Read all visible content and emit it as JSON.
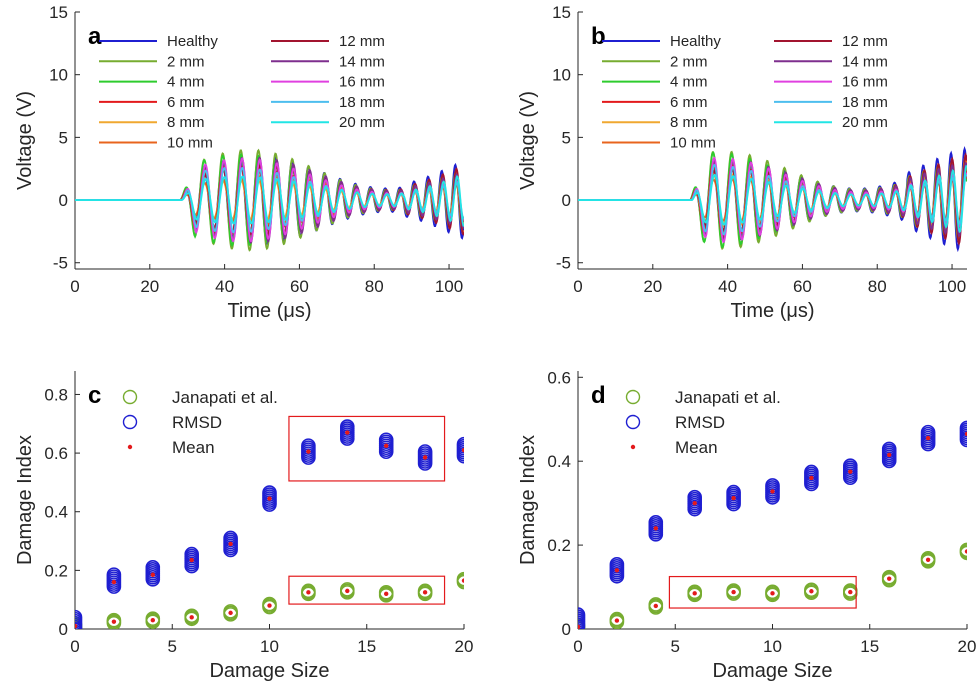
{
  "chart_data": [
    {
      "panel": "a",
      "type": "line",
      "xlabel": "Time (μs)",
      "ylabel": "Voltage (V)",
      "xlim": [
        0,
        104
      ],
      "ylim": [
        -5.5,
        15
      ],
      "xticks": [
        0,
        20,
        40,
        60,
        80,
        100
      ],
      "yticks": [
        -5,
        0,
        5,
        10,
        15
      ],
      "grid": false,
      "legend": "top-left",
      "onset": 28,
      "series": [
        {
          "name": "Healthy",
          "color": "#1f1fd1"
        },
        {
          "name": "2 mm",
          "color": "#77ac30"
        },
        {
          "name": "4 mm",
          "color": "#2ecc2e"
        },
        {
          "name": "6 mm",
          "color": "#e31a1c"
        },
        {
          "name": "8 mm",
          "color": "#f0a830"
        },
        {
          "name": "10 mm",
          "color": "#e8641e"
        },
        {
          "name": "12 mm",
          "color": "#a2142f"
        },
        {
          "name": "14 mm",
          "color": "#7e2f8e"
        },
        {
          "name": "16 mm",
          "color": "#e040e0"
        },
        {
          "name": "18 mm",
          "color": "#4dbeee"
        },
        {
          "name": "20 mm",
          "color": "#22e5e5"
        }
      ]
    },
    {
      "panel": "b",
      "type": "line",
      "xlabel": "Time (μs)",
      "ylabel": "Voltage (V)",
      "xlim": [
        0,
        104
      ],
      "ylim": [
        -5.5,
        15
      ],
      "xticks": [
        0,
        20,
        40,
        60,
        80,
        100
      ],
      "yticks": [
        -5,
        0,
        5,
        10,
        15
      ],
      "grid": false,
      "legend": "top-left",
      "onset": 30,
      "series": [
        {
          "name": "Healthy",
          "color": "#1f1fd1"
        },
        {
          "name": "2 mm",
          "color": "#77ac30"
        },
        {
          "name": "4 mm",
          "color": "#2ecc2e"
        },
        {
          "name": "6 mm",
          "color": "#e31a1c"
        },
        {
          "name": "8 mm",
          "color": "#f0a830"
        },
        {
          "name": "10 mm",
          "color": "#e8641e"
        },
        {
          "name": "12 mm",
          "color": "#a2142f"
        },
        {
          "name": "14 mm",
          "color": "#7e2f8e"
        },
        {
          "name": "16 mm",
          "color": "#e040e0"
        },
        {
          "name": "18 mm",
          "color": "#4dbeee"
        },
        {
          "name": "20 mm",
          "color": "#22e5e5"
        }
      ]
    },
    {
      "panel": "c",
      "type": "scatter",
      "xlabel": "Damage Size",
      "ylabel": "Damage Index",
      "xlim": [
        0,
        20
      ],
      "ylim": [
        0,
        0.88
      ],
      "xticks": [
        0,
        5,
        10,
        15,
        20
      ],
      "yticks": [
        0,
        0.2,
        0.4,
        0.6,
        0.8
      ],
      "ytick_labels": [
        "0",
        "0.2",
        "0.4",
        "0.6",
        "0.8"
      ],
      "grid": false,
      "legend": "top-left",
      "x": [
        0,
        2,
        4,
        6,
        8,
        10,
        12,
        14,
        16,
        18,
        20
      ],
      "series": [
        {
          "name": "Janapati et al.",
          "color": "#77ac30",
          "values": [
            0.01,
            0.025,
            0.03,
            0.04,
            0.055,
            0.08,
            0.125,
            0.13,
            0.12,
            0.125,
            0.165
          ]
        },
        {
          "name": "RMSD",
          "color": "#1f1fd1",
          "values": [
            0.02,
            0.165,
            0.19,
            0.235,
            0.29,
            0.445,
            0.605,
            0.67,
            0.625,
            0.585,
            0.61
          ]
        },
        {
          "name": "Mean",
          "color": "#e31a1c",
          "values": [
            0.01,
            0.16,
            0.185,
            0.235,
            0.29,
            0.445,
            0.605,
            0.67,
            0.625,
            0.585,
            0.61
          ]
        }
      ],
      "highlight_boxes": [
        {
          "x": [
            11,
            19
          ],
          "y": [
            0.505,
            0.725
          ]
        },
        {
          "x": [
            11,
            19
          ],
          "y": [
            0.085,
            0.18
          ]
        }
      ]
    },
    {
      "panel": "d",
      "type": "scatter",
      "xlabel": "Damage Size",
      "ylabel": "Damage Index",
      "xlim": [
        0,
        20
      ],
      "ylim": [
        0,
        0.615
      ],
      "xticks": [
        0,
        5,
        10,
        15,
        20
      ],
      "yticks": [
        0,
        0.2,
        0.4,
        0.6
      ],
      "ytick_labels": [
        "0",
        "0.2",
        "0.4",
        "0.6"
      ],
      "grid": false,
      "legend": "top-left",
      "x": [
        0,
        2,
        4,
        6,
        8,
        10,
        12,
        14,
        16,
        18,
        20
      ],
      "series": [
        {
          "name": "Janapati et al.",
          "color": "#77ac30",
          "values": [
            0.005,
            0.02,
            0.055,
            0.085,
            0.088,
            0.085,
            0.09,
            0.088,
            0.12,
            0.165,
            0.185
          ]
        },
        {
          "name": "RMSD",
          "color": "#1f1fd1",
          "values": [
            0.02,
            0.14,
            0.24,
            0.3,
            0.312,
            0.328,
            0.36,
            0.375,
            0.415,
            0.455,
            0.465
          ]
        },
        {
          "name": "Mean",
          "color": "#e31a1c",
          "values": [
            0.005,
            0.14,
            0.24,
            0.3,
            0.312,
            0.328,
            0.36,
            0.375,
            0.415,
            0.455,
            0.465
          ]
        }
      ],
      "highlight_boxes": [
        {
          "x": [
            4.7,
            14.3
          ],
          "y": [
            0.05,
            0.125
          ]
        }
      ]
    }
  ]
}
